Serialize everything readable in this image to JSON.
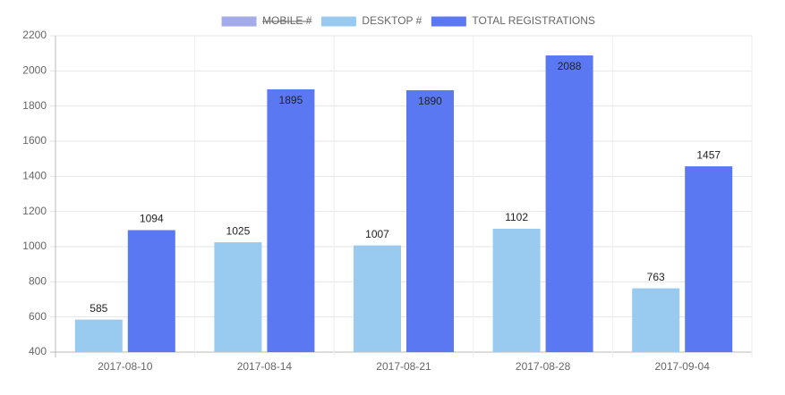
{
  "chart_data": {
    "type": "bar",
    "categories": [
      "2017-08-10",
      "2017-08-14",
      "2017-08-21",
      "2017-08-28",
      "2017-09-04"
    ],
    "series": [
      {
        "name": "MOBILE #",
        "color": "#a3abe9",
        "hidden": true,
        "values": [
          null,
          null,
          null,
          null,
          null
        ]
      },
      {
        "name": "DESKTOP #",
        "color": "#99cbf1",
        "values": [
          585,
          1025,
          1007,
          1102,
          763
        ]
      },
      {
        "name": "TOTAL REGISTRATIONS",
        "color": "#5b78f3",
        "values": [
          1094,
          1895,
          1890,
          2088,
          1457
        ]
      }
    ],
    "ylim": [
      400,
      2200
    ],
    "yticks": [
      400,
      600,
      800,
      1000,
      1200,
      1400,
      1600,
      1800,
      2000,
      2200
    ],
    "grid": true,
    "legend": "top"
  }
}
